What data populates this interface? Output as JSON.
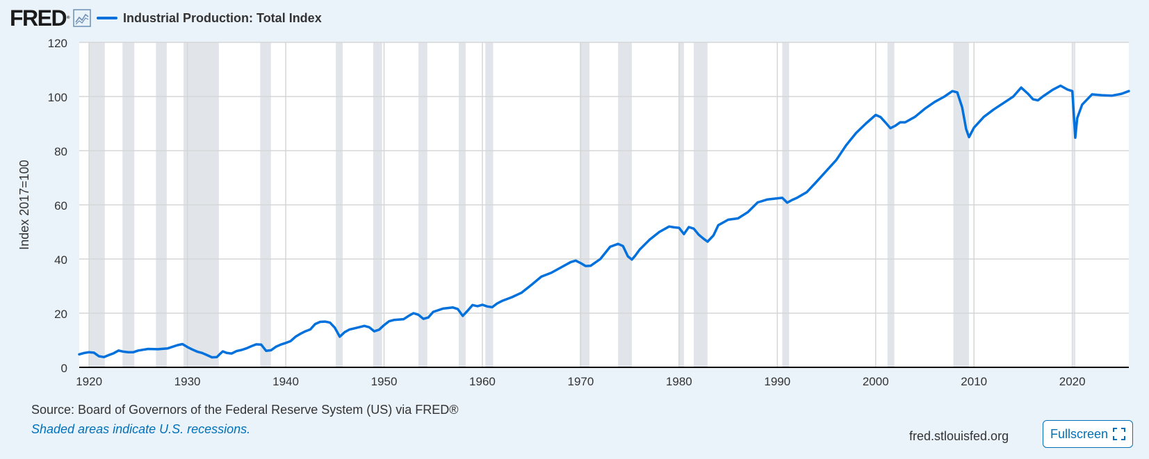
{
  "header": {
    "logo_text": "FRED",
    "logo_reg": "®",
    "logo_icon": "line-chart-icon"
  },
  "footer": {
    "source": "Source: Board of Governors of the Federal Reserve System (US) via FRED®",
    "note": "Shaded areas indicate U.S. recessions.",
    "site": "fred.stlouisfed.org",
    "fullscreen_label": "Fullscreen",
    "fullscreen_icon": "fullscreen-icon"
  },
  "colors": {
    "background": "#eaf2fa",
    "plot_background": "#ffffff",
    "series": "#0071dc",
    "recession": "#e1e5ea",
    "grid": "#d6d6d6",
    "axis": "#000000",
    "link": "#0071b9"
  },
  "chart_data": {
    "type": "line",
    "title": "",
    "xlabel": "",
    "ylabel": "Index 2017=100",
    "xlim": [
      1919.0,
      2025.75
    ],
    "ylim": [
      0,
      120
    ],
    "yticks": [
      0,
      20,
      40,
      60,
      80,
      100,
      120
    ],
    "xticks": [
      1920,
      1930,
      1940,
      1950,
      1960,
      1970,
      1980,
      1990,
      2000,
      2010,
      2020
    ],
    "grid": true,
    "legend": "top-left",
    "series": [
      {
        "name": "Industrial Production: Total Index",
        "x": [
          1919.0,
          1919.5,
          1920.0,
          1920.5,
          1921.0,
          1921.5,
          1922.0,
          1922.5,
          1923.0,
          1923.5,
          1924.0,
          1924.5,
          1925.0,
          1926.0,
          1927.0,
          1928.0,
          1929.0,
          1929.5,
          1930.0,
          1930.5,
          1931.0,
          1931.5,
          1932.0,
          1932.5,
          1933.0,
          1933.3,
          1933.6,
          1934.0,
          1934.5,
          1935.0,
          1935.5,
          1936.0,
          1936.5,
          1937.0,
          1937.5,
          1938.0,
          1938.5,
          1939.0,
          1939.5,
          1940.0,
          1940.5,
          1941.0,
          1941.5,
          1942.0,
          1942.5,
          1943.0,
          1943.5,
          1944.0,
          1944.5,
          1945.0,
          1945.5,
          1946.0,
          1946.5,
          1947.0,
          1948.0,
          1948.5,
          1949.0,
          1949.5,
          1950.0,
          1950.5,
          1951.0,
          1952.0,
          1952.5,
          1953.0,
          1953.5,
          1954.0,
          1954.5,
          1955.0,
          1956.0,
          1957.0,
          1957.5,
          1958.0,
          1958.5,
          1959.0,
          1959.5,
          1960.0,
          1960.5,
          1961.0,
          1961.5,
          1962.0,
          1963.0,
          1964.0,
          1965.0,
          1966.0,
          1967.0,
          1968.0,
          1969.0,
          1969.5,
          1970.0,
          1970.5,
          1971.0,
          1972.0,
          1973.0,
          1973.8,
          1974.3,
          1974.8,
          1975.2,
          1975.5,
          1976.0,
          1977.0,
          1978.0,
          1979.0,
          1979.5,
          1980.0,
          1980.5,
          1981.0,
          1981.5,
          1982.0,
          1982.5,
          1982.9,
          1983.5,
          1984.0,
          1985.0,
          1986.0,
          1987.0,
          1988.0,
          1989.0,
          1990.0,
          1990.5,
          1991.0,
          1991.5,
          1992.0,
          1993.0,
          1994.0,
          1995.0,
          1996.0,
          1997.0,
          1998.0,
          1999.0,
          2000.0,
          2000.5,
          2001.0,
          2001.5,
          2002.0,
          2002.5,
          2003.0,
          2004.0,
          2005.0,
          2006.0,
          2007.0,
          2007.8,
          2008.3,
          2008.8,
          2009.2,
          2009.5,
          2010.0,
          2011.0,
          2012.0,
          2013.0,
          2014.0,
          2014.8,
          2015.5,
          2016.0,
          2016.5,
          2017.0,
          2018.0,
          2018.8,
          2019.5,
          2020.0,
          2020.3,
          2020.5,
          2021.0,
          2022.0,
          2023.0,
          2024.0,
          2025.0,
          2025.75
        ],
        "values": [
          4.8,
          5.3,
          5.6,
          5.4,
          4.1,
          3.8,
          4.5,
          5.2,
          6.2,
          5.8,
          5.6,
          5.6,
          6.2,
          6.8,
          6.7,
          7.0,
          8.2,
          8.6,
          7.5,
          6.6,
          5.8,
          5.3,
          4.5,
          3.7,
          3.8,
          4.9,
          5.9,
          5.3,
          5.1,
          6.0,
          6.4,
          7.0,
          7.8,
          8.5,
          8.4,
          6.1,
          6.3,
          7.6,
          8.4,
          9.0,
          9.7,
          11.3,
          12.4,
          13.3,
          14.0,
          16.0,
          16.8,
          16.9,
          16.5,
          14.6,
          11.3,
          13.0,
          14.0,
          14.4,
          15.3,
          14.8,
          13.3,
          13.9,
          15.6,
          17.0,
          17.5,
          17.8,
          19.0,
          20.0,
          19.4,
          17.9,
          18.4,
          20.5,
          21.7,
          22.1,
          21.5,
          19.0,
          20.9,
          23.0,
          22.6,
          23.1,
          22.5,
          22.2,
          23.6,
          24.5,
          25.9,
          27.6,
          30.5,
          33.5,
          34.9,
          36.9,
          38.9,
          39.4,
          38.5,
          37.4,
          37.5,
          40.0,
          44.5,
          45.6,
          44.8,
          41.0,
          39.8,
          41.0,
          43.5,
          47.1,
          50.0,
          52.0,
          51.7,
          51.5,
          49.2,
          51.8,
          51.2,
          49.0,
          47.5,
          46.4,
          48.7,
          52.5,
          54.5,
          55.0,
          57.3,
          60.9,
          62.0,
          62.4,
          62.6,
          60.8,
          61.8,
          62.6,
          64.7,
          68.6,
          72.6,
          76.6,
          82.0,
          86.5,
          90.0,
          93.2,
          92.4,
          90.4,
          88.3,
          89.2,
          90.5,
          90.5,
          92.5,
          95.5,
          98.0,
          100.0,
          102.0,
          101.5,
          96.0,
          88.0,
          85.0,
          88.5,
          92.5,
          95.2,
          97.6,
          100.0,
          103.3,
          101.0,
          99.0,
          98.6,
          100.0,
          102.5,
          104.0,
          102.6,
          102.0,
          84.8,
          92.0,
          97.0,
          100.8,
          100.5,
          100.3,
          101.0,
          102.0
        ]
      }
    ],
    "recessions": [
      [
        1920.0,
        1921.6
      ],
      [
        1923.4,
        1924.6
      ],
      [
        1926.8,
        1927.9
      ],
      [
        1929.6,
        1933.2
      ],
      [
        1937.4,
        1938.5
      ],
      [
        1945.1,
        1945.8
      ],
      [
        1948.9,
        1949.8
      ],
      [
        1953.5,
        1954.4
      ],
      [
        1957.6,
        1958.3
      ],
      [
        1960.3,
        1961.1
      ],
      [
        1969.9,
        1970.9
      ],
      [
        1973.8,
        1975.2
      ],
      [
        1980.0,
        1980.5
      ],
      [
        1981.5,
        1982.9
      ],
      [
        1990.5,
        1991.2
      ],
      [
        2001.2,
        2001.9
      ],
      [
        2007.9,
        2009.5
      ],
      [
        2020.1,
        2020.3
      ]
    ]
  }
}
